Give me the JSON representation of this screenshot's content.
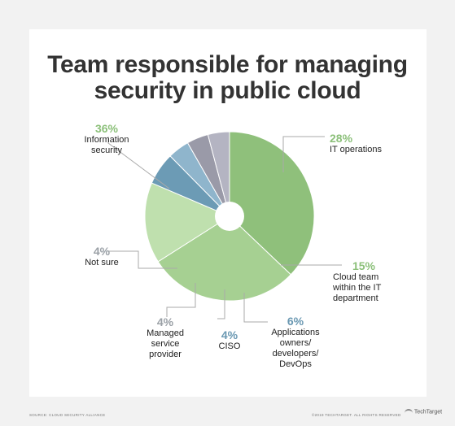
{
  "chart_data": {
    "type": "pie",
    "title": "Team responsible for managing security in public cloud",
    "slices": [
      {
        "label": "Information security",
        "value": 36,
        "pct_text": "36%",
        "color": "#8fc07b",
        "text_class": "c-green"
      },
      {
        "label": "IT operations",
        "value": 28,
        "pct_text": "28%",
        "color": "#a6d092",
        "text_class": "c-green"
      },
      {
        "label": "Cloud team within the IT department",
        "value": 15,
        "pct_text": "15%",
        "color": "#bfe0ae",
        "text_class": "c-green"
      },
      {
        "label": "Applications owners/ developers/ DevOps",
        "value": 6,
        "pct_text": "6%",
        "color": "#6c9bb5",
        "text_class": "c-blue"
      },
      {
        "label": "CISO",
        "value": 4,
        "pct_text": "4%",
        "color": "#8fb5cc",
        "text_class": "c-blue"
      },
      {
        "label": "Managed service provider",
        "value": 4,
        "pct_text": "4%",
        "color": "#9a9aa8",
        "text_class": "c-gray"
      },
      {
        "label": "Not sure",
        "value": 4,
        "pct_text": "4%",
        "color": "#b4b4c2",
        "text_class": "c-gray"
      }
    ]
  },
  "footer": {
    "source": "SOURCE: CLOUD SECURITY ALLIANCE",
    "rights": "©2019 TECHTARGET. ALL RIGHTS RESERVED",
    "logo": "TechTarget"
  }
}
